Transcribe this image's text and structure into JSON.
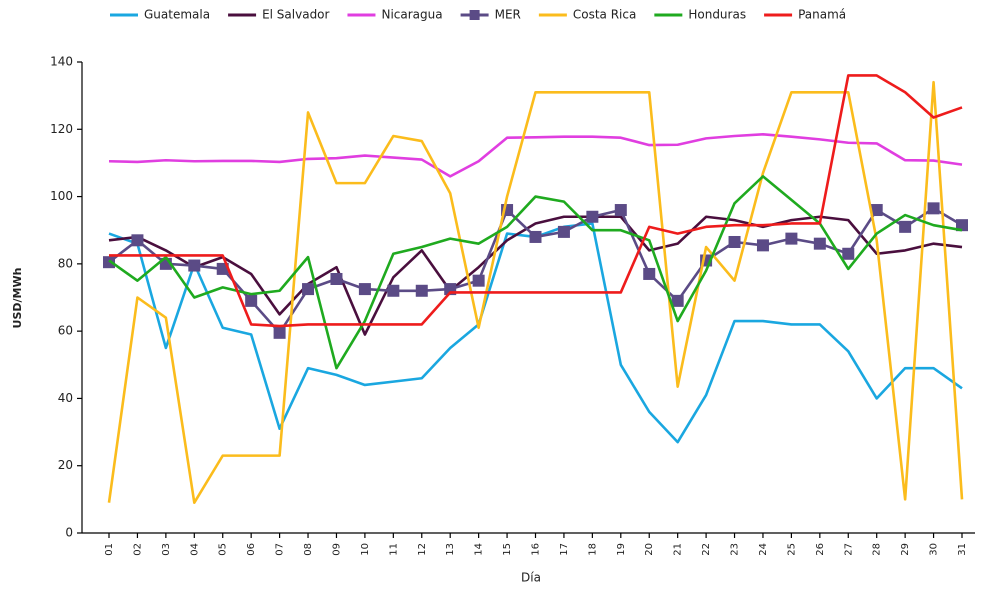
{
  "chart_data": {
    "type": "line",
    "x_label": "Día",
    "y_label": "USD/MWh",
    "categories": [
      "01",
      "02",
      "03",
      "04",
      "05",
      "06",
      "07",
      "08",
      "09",
      "10",
      "11",
      "12",
      "13",
      "14",
      "15",
      "16",
      "17",
      "18",
      "19",
      "20",
      "21",
      "22",
      "23",
      "24",
      "25",
      "26",
      "27",
      "28",
      "29",
      "30",
      "31"
    ],
    "ylim": [
      0,
      140
    ],
    "yticks": [
      0,
      20,
      40,
      60,
      80,
      100,
      120,
      140
    ],
    "grid": false,
    "legend": "top",
    "series": [
      {
        "name": "Guatemala",
        "color": "#1aa7e0",
        "values": [
          89,
          86,
          55,
          80,
          61,
          59,
          31,
          49,
          47,
          44,
          45,
          46,
          55,
          62,
          89,
          88,
          91,
          92,
          50,
          36,
          27,
          41,
          63,
          63,
          62,
          62,
          54,
          40,
          49,
          49,
          43
        ]
      },
      {
        "name": "El Salvador",
        "color": "#4a0f3e",
        "values": [
          87,
          88,
          84,
          79,
          82,
          77,
          65,
          74,
          79,
          59,
          76,
          84,
          72,
          79,
          87,
          92,
          94,
          94,
          94,
          84,
          86,
          94,
          93,
          91,
          93,
          94,
          93,
          83,
          84,
          86,
          85
        ]
      },
      {
        "name": "Nicaragua",
        "color": "#e03ee0",
        "values": [
          110.5,
          110.3,
          110.8,
          110.5,
          110.6,
          110.6,
          110.3,
          111.2,
          111.4,
          112.2,
          111.6,
          111,
          106,
          110.5,
          117.5,
          117.6,
          117.8,
          117.8,
          117.5,
          115.3,
          115.4,
          117.3,
          118,
          118.5,
          117.8,
          117,
          116,
          115.8,
          110.8,
          110.7,
          109.5
        ]
      },
      {
        "name": "MER",
        "color": "#5b4b86",
        "marker": "square",
        "values": [
          80.5,
          87,
          80,
          79.5,
          78.5,
          69,
          59.5,
          72.5,
          75.5,
          72.5,
          72,
          72,
          72.5,
          75,
          96,
          88,
          89.5,
          94,
          96,
          77,
          69,
          81,
          86.5,
          85.5,
          87.5,
          86,
          83,
          96,
          91,
          96.5,
          91.5
        ]
      },
      {
        "name": "Costa Rica",
        "color": "#fbbc1c",
        "values": [
          9,
          70,
          64,
          9,
          23,
          23,
          23,
          125,
          104,
          104,
          118,
          116.5,
          101,
          61,
          100,
          131,
          131,
          131,
          131,
          131,
          43.5,
          85,
          75,
          107,
          131,
          131,
          131,
          87,
          10,
          134,
          10
        ]
      },
      {
        "name": "Honduras",
        "color": "#1faa1f",
        "values": [
          81,
          75,
          82,
          70,
          73,
          71,
          72,
          82,
          49,
          63,
          83,
          85,
          87.5,
          86,
          91,
          100,
          98.5,
          90,
          90,
          87,
          63,
          78,
          98,
          106,
          99,
          92,
          78.5,
          89,
          94.5,
          91.5,
          90
        ]
      },
      {
        "name": "Panamá",
        "color": "#ee1c1c",
        "values": [
          82.5,
          82.5,
          82.5,
          82.5,
          82.5,
          62,
          61.5,
          62,
          62,
          62,
          62,
          62,
          71.5,
          71.5,
          71.5,
          71.5,
          71.5,
          71.5,
          71.5,
          91,
          89,
          91,
          91.5,
          91.5,
          92,
          92,
          136,
          136,
          131,
          123.5,
          126.5
        ]
      }
    ]
  }
}
